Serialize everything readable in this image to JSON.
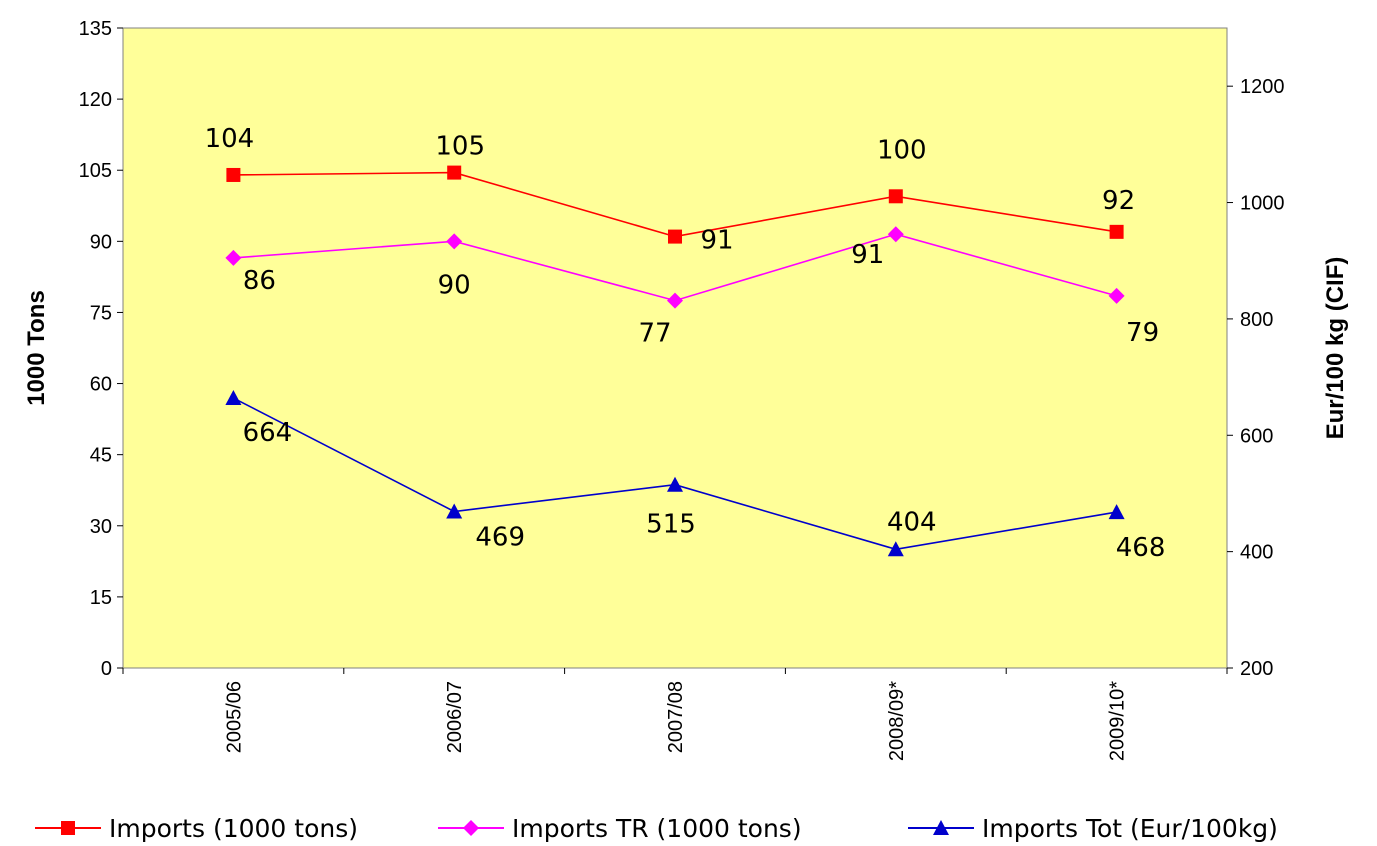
{
  "chart_data": {
    "type": "line",
    "categories": [
      "2005/06",
      "2006/07",
      "2007/08",
      "2008/09*",
      "2009/10*"
    ],
    "series": [
      {
        "name": "Imports (1000 tons)",
        "axis": "left",
        "color": "#ff0000",
        "marker": "square",
        "values": [
          104,
          104.5,
          91,
          99.5,
          92
        ],
        "labels": [
          "104",
          "105",
          "91",
          "100",
          "92"
        ]
      },
      {
        "name": "Imports TR (1000 tons)",
        "axis": "left",
        "color": "#ff00ff",
        "marker": "diamond",
        "values": [
          86.5,
          90,
          77.5,
          91.5,
          78.5
        ],
        "labels": [
          "86",
          "90",
          "77",
          "91",
          "79"
        ]
      },
      {
        "name": "Imports Tot (Eur/100kg)",
        "axis": "right",
        "color": "#0000cc",
        "marker": "triangle",
        "values": [
          664,
          469,
          515,
          404,
          468
        ],
        "labels": [
          "664",
          "469",
          "515",
          "404",
          "468"
        ]
      }
    ],
    "y_left": {
      "label": "1000 Tons",
      "min": 0,
      "max": 135,
      "ticks": [
        "0",
        "15",
        "30",
        "45",
        "60",
        "75",
        "90",
        "105",
        "120",
        "135"
      ]
    },
    "y_right": {
      "label": "Eur/100 kg (CIF)",
      "min": 200,
      "max": 1300,
      "ticks": [
        "200",
        "400",
        "600",
        "800",
        "1000",
        "1200"
      ]
    },
    "plot_background": "#ffff99",
    "grid": false,
    "legend_position": "bottom"
  }
}
